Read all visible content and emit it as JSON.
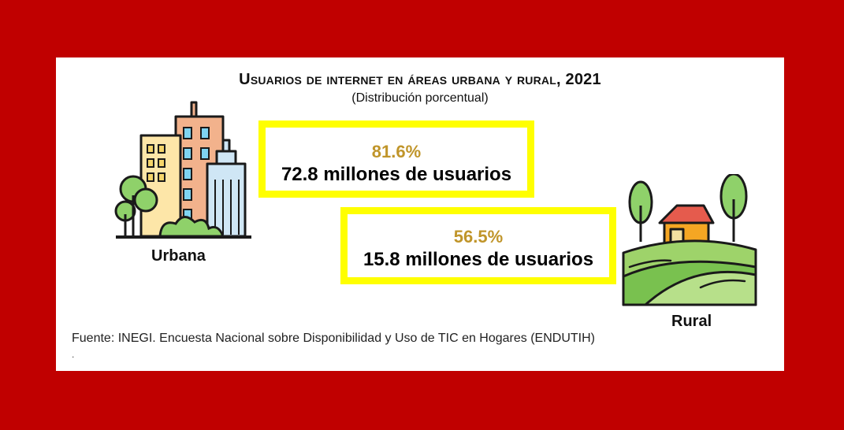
{
  "title": "Usuarios de internet en áreas urbana y rural, 2021",
  "subtitle": "(Distribución porcentual)",
  "urban": {
    "label": "Urbana",
    "percent": "81.6%",
    "users": "72.8 millones de usuarios"
  },
  "rural": {
    "label": "Rural",
    "percent": "56.5%",
    "users": "15.8 millones de usuarios"
  },
  "source": "Fuente: INEGI. Encuesta Nacional sobre Disponibilidad y Uso de TIC en Hogares (ENDUTIH)",
  "footnote_mark": ".",
  "icons": {
    "urban": "city-buildings-icon",
    "rural": "farm-house-icon"
  },
  "colors": {
    "frame": "#c00000",
    "box_border": "#ffff00",
    "percent_text": "#c0952a"
  }
}
